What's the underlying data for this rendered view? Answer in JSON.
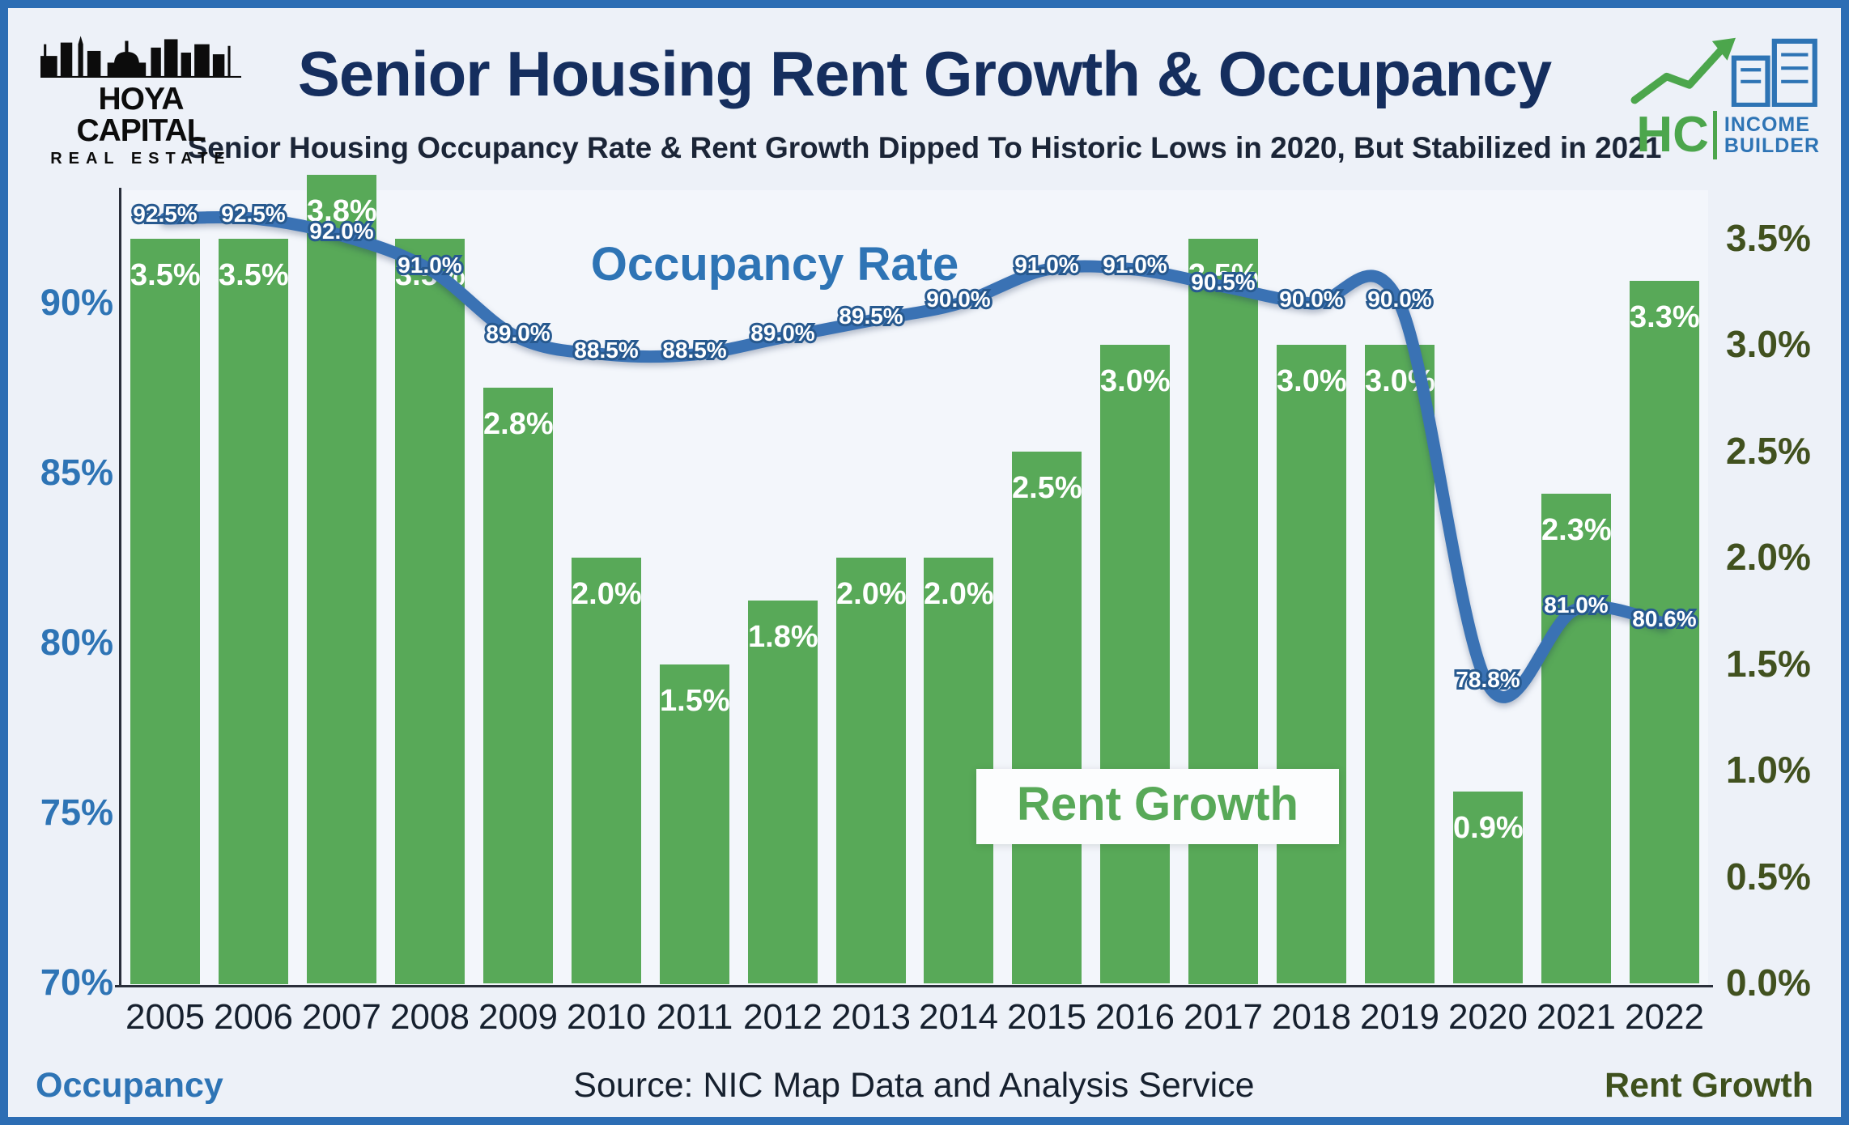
{
  "header": {
    "title": "Senior Housing Rent Growth & Occupancy",
    "subtitle": "Senior Housing Occupancy Rate & Rent Growth Dipped To Historic Lows in 2020, But Stabilized in 2021",
    "logo_left": {
      "line1": "HOYA CAPITAL",
      "line2": "REAL ESTATE"
    },
    "logo_right": {
      "hc": "HC",
      "line1": "INCOME",
      "line2": "BUILDER"
    }
  },
  "footer": {
    "left": "Occupancy",
    "center": "Source: NIC Map Data and Analysis Service",
    "right": "Rent Growth"
  },
  "colors": {
    "frame_border": "#2c6db4",
    "background": "#edf1f8",
    "bar_green": "#58a958",
    "line_blue": "#3a72b4",
    "left_axis_blue": "#2e74b5",
    "right_axis_olive": "#41511f",
    "title_navy": "#152e5e"
  },
  "chart_data": {
    "type": "bar+line",
    "categories": [
      "2005",
      "2006",
      "2007",
      "2008",
      "2009",
      "2010",
      "2011",
      "2012",
      "2013",
      "2014",
      "2015",
      "2016",
      "2017",
      "2018",
      "2019",
      "2020",
      "2021",
      "2022"
    ],
    "series": [
      {
        "name": "Rent Growth",
        "type": "bar",
        "axis": "right",
        "color": "#58a958",
        "values": [
          3.5,
          3.5,
          3.8,
          3.5,
          2.8,
          2.0,
          1.5,
          1.8,
          2.0,
          2.0,
          2.5,
          3.0,
          3.5,
          3.0,
          3.0,
          0.9,
          2.3,
          3.3
        ]
      },
      {
        "name": "Occupancy",
        "type": "line",
        "axis": "left",
        "color": "#3a72b4",
        "values": [
          92.5,
          92.5,
          92.0,
          91.0,
          89.0,
          88.5,
          88.5,
          89.0,
          89.5,
          90.0,
          91.0,
          91.0,
          90.5,
          90.0,
          90.0,
          78.8,
          81.0,
          80.6
        ]
      }
    ],
    "left_axis": {
      "ticks": [
        "70%",
        "75%",
        "80%",
        "85%",
        "90%"
      ],
      "min": 70,
      "max": 93.8
    },
    "right_axis": {
      "ticks": [
        "0.0%",
        "0.5%",
        "1.0%",
        "1.5%",
        "2.0%",
        "2.5%",
        "3.0%",
        "3.5%"
      ],
      "min": 0,
      "max": 3.83
    },
    "annotations": {
      "line_label": "Occupancy Rate",
      "bar_label": "Rent Growth"
    },
    "legend_position": "none",
    "grid": false
  }
}
